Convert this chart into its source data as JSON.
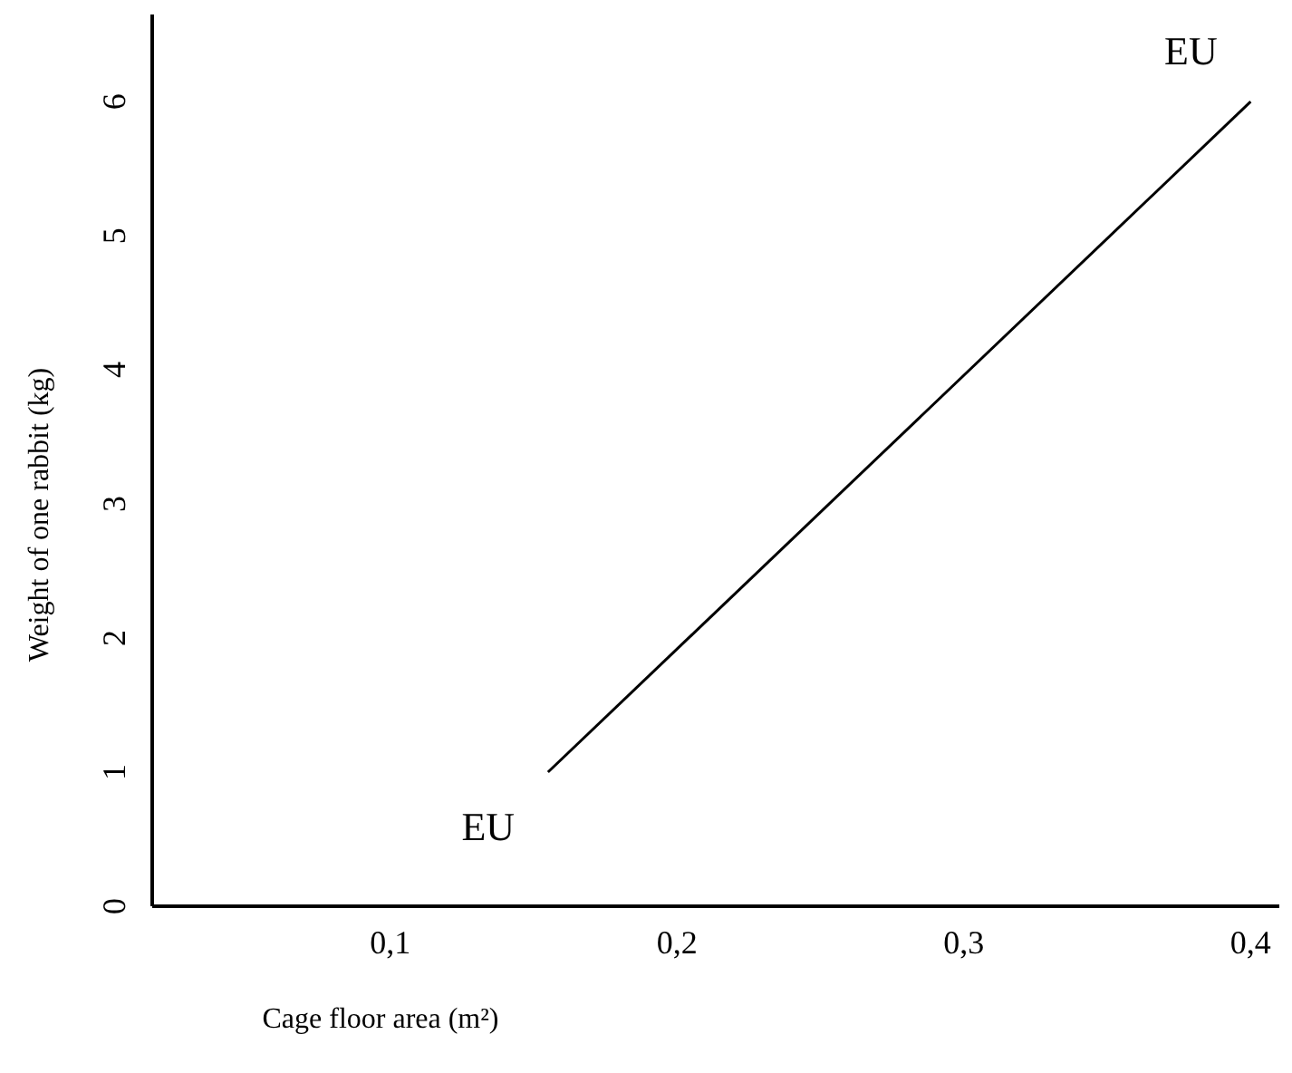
{
  "chart_data": {
    "type": "line",
    "xlabel": "Cage floor area (m²)",
    "ylabel": "Weight of one rabbit (kg)",
    "x": [
      0.155,
      0.4
    ],
    "series": [
      {
        "color": "#000000",
        "values": [
          1,
          6
        ]
      }
    ],
    "xlim": [
      0.017,
      0.41
    ],
    "xticks": [
      {
        "value": 0.1,
        "label": "0,1"
      },
      {
        "value": 0.2,
        "label": "0,2"
      },
      {
        "value": 0.3,
        "label": "0,3"
      },
      {
        "value": 0.4,
        "label": "0,4"
      }
    ],
    "ylim": [
      0,
      6.65
    ],
    "yticks": [
      0,
      1,
      2,
      3,
      4,
      5,
      6
    ],
    "annotations": [
      "EU",
      "EU"
    ],
    "grid": false,
    "marker": "none",
    "line_style": "solid"
  }
}
